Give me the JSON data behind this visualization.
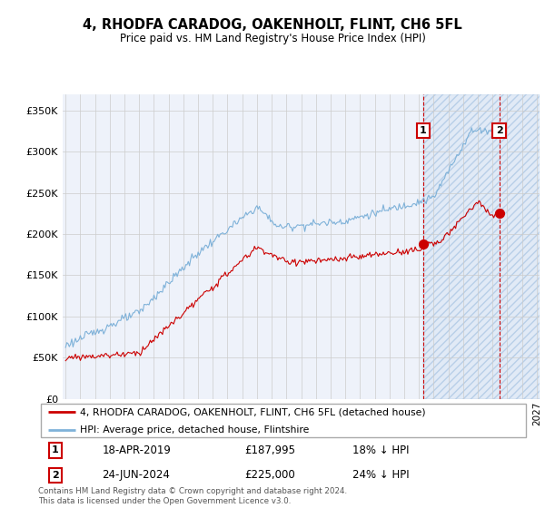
{
  "title": "4, RHODFA CARADOG, OAKENHOLT, FLINT, CH6 5FL",
  "subtitle": "Price paid vs. HM Land Registry's House Price Index (HPI)",
  "hpi_color": "#7fb2d9",
  "price_color": "#cc0000",
  "annotation1_date": "18-APR-2019",
  "annotation1_price": 187995,
  "annotation1_label": "18% ↓ HPI",
  "annotation2_date": "24-JUN-2024",
  "annotation2_price": 225000,
  "annotation2_label": "24% ↓ HPI",
  "yticks": [
    0,
    50000,
    100000,
    150000,
    200000,
    250000,
    300000,
    350000
  ],
  "background_color": "#ffffff",
  "plot_bg_color": "#eef2fa",
  "grid_color": "#cccccc",
  "footer": "Contains HM Land Registry data © Crown copyright and database right 2024.\nThis data is licensed under the Open Government Licence v3.0.",
  "legend1": "4, RHODFA CARADOG, OAKENHOLT, FLINT, CH6 5FL (detached house)",
  "legend2": "HPI: Average price, detached house, Flintshire",
  "ann1_x": 2019.3,
  "ann1_y": 187995,
  "ann2_x": 2024.46,
  "ann2_y": 225000,
  "shade_start": 2019.3,
  "xmin": 1995,
  "xmax": 2027
}
